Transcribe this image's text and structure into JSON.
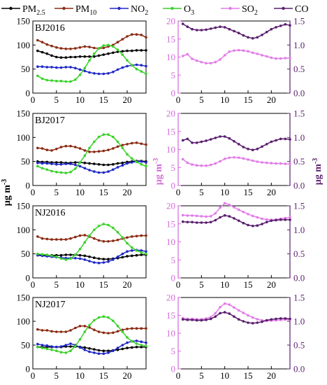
{
  "legend": {
    "items": [
      {
        "label": "PM2.5",
        "base": "PM",
        "sub": "2.5",
        "color": "#000000"
      },
      {
        "label": "PM10",
        "base": "PM",
        "sub": "10",
        "color": "#8b2a12"
      },
      {
        "label": "NO2",
        "base": "NO",
        "sub": "2",
        "color": "#1f27c7"
      },
      {
        "label": "O3",
        "base": "O",
        "sub": "3",
        "color": "#3ad12a"
      },
      {
        "label": "SO2",
        "base": "SO",
        "sub": "2",
        "color": "#e27de7"
      },
      {
        "label": "CO",
        "base": "CO",
        "sub": "",
        "color": "#5a1e6e"
      }
    ]
  },
  "axis_labels": {
    "left": "μg m-3",
    "middle": "μg m-3",
    "right": "μg m-3"
  },
  "colors": {
    "PM2.5": "#000000",
    "PM10": "#8b2a12",
    "NO2": "#1f27c7",
    "O3": "#3ad12a",
    "SO2": "#e27de7",
    "CO": "#5a1e6e",
    "so2_axis": "#d36ad9",
    "co_axis": "#5a1e6e"
  },
  "chart_data": [
    {
      "type": "line",
      "panel_label": "BJ2016",
      "x": [
        1,
        2,
        3,
        4,
        5,
        6,
        7,
        8,
        9,
        10,
        11,
        12,
        13,
        14,
        15,
        16,
        17,
        18,
        19,
        20,
        21,
        22,
        23,
        24
      ],
      "xlim": [
        0,
        24
      ],
      "xticks": [
        0,
        5,
        10,
        15,
        20
      ],
      "ylim": [
        0,
        150
      ],
      "yticks": [
        0,
        50,
        100,
        150
      ],
      "series": [
        {
          "name": "PM2.5",
          "values": [
            88,
            85,
            82,
            78,
            75,
            74,
            74,
            75,
            75,
            76,
            76,
            76,
            76,
            78,
            80,
            82,
            84,
            86,
            87,
            88,
            88,
            89,
            89,
            89
          ]
        },
        {
          "name": "PM10",
          "values": [
            110,
            106,
            101,
            98,
            95,
            93,
            92,
            92,
            93,
            95,
            97,
            96,
            94,
            93,
            94,
            97,
            100,
            106,
            112,
            118,
            122,
            122,
            121,
            116
          ]
        },
        {
          "name": "NO2",
          "values": [
            55,
            55,
            54,
            54,
            53,
            53,
            54,
            54,
            52,
            49,
            46,
            43,
            41,
            40,
            40,
            41,
            44,
            49,
            53,
            56,
            58,
            59,
            58,
            56
          ]
        },
        {
          "name": "O3",
          "values": [
            36,
            30,
            27,
            26,
            25,
            25,
            24,
            24,
            28,
            38,
            52,
            68,
            82,
            93,
            99,
            100,
            97,
            90,
            80,
            68,
            58,
            50,
            45,
            40
          ]
        }
      ]
    },
    {
      "type": "line",
      "panel_label": "",
      "x": [
        1,
        2,
        3,
        4,
        5,
        6,
        7,
        8,
        9,
        10,
        11,
        12,
        13,
        14,
        15,
        16,
        17,
        18,
        19,
        20,
        21,
        22,
        23,
        24
      ],
      "xlim": [
        0,
        24
      ],
      "xticks": [
        0,
        5,
        10,
        15,
        20
      ],
      "y_left": {
        "series": "SO2",
        "ylim": [
          0,
          20
        ],
        "yticks": [
          0,
          5,
          10,
          15,
          20
        ]
      },
      "y_right": {
        "series": "CO",
        "ylim": [
          0,
          1.5
        ],
        "yticks": [
          0.0,
          0.5,
          1.0,
          1.5
        ]
      },
      "series": [
        {
          "name": "SO2",
          "axis": "left",
          "values": [
            10.3,
            10.8,
            9.5,
            9.0,
            8.6,
            8.3,
            8.3,
            8.6,
            9.3,
            10.5,
            11.5,
            11.8,
            11.9,
            11.8,
            11.6,
            11.2,
            10.9,
            10.5,
            10.2,
            9.8,
            9.6,
            9.6,
            9.7,
            9.7
          ]
        },
        {
          "name": "CO",
          "axis": "right",
          "values": [
            1.44,
            1.38,
            1.33,
            1.31,
            1.31,
            1.32,
            1.34,
            1.36,
            1.38,
            1.37,
            1.33,
            1.29,
            1.25,
            1.2,
            1.16,
            1.14,
            1.16,
            1.21,
            1.27,
            1.33,
            1.37,
            1.4,
            1.43,
            1.41
          ]
        }
      ]
    },
    {
      "type": "line",
      "panel_label": "BJ2017",
      "x": [
        1,
        2,
        3,
        4,
        5,
        6,
        7,
        8,
        9,
        10,
        11,
        12,
        13,
        14,
        15,
        16,
        17,
        18,
        19,
        20,
        21,
        22,
        23,
        24
      ],
      "xlim": [
        0,
        24
      ],
      "xticks": [
        0,
        5,
        10,
        15,
        20
      ],
      "ylim": [
        0,
        150
      ],
      "yticks": [
        0,
        50,
        100,
        150
      ],
      "series": [
        {
          "name": "PM2.5",
          "values": [
            50,
            49,
            49,
            48,
            48,
            48,
            47,
            47,
            48,
            48,
            47,
            46,
            45,
            44,
            43,
            43,
            44,
            46,
            47,
            49,
            50,
            51,
            51,
            50
          ]
        },
        {
          "name": "PM10",
          "values": [
            78,
            77,
            74,
            73,
            76,
            80,
            82,
            82,
            80,
            77,
            73,
            70,
            70,
            71,
            72,
            74,
            77,
            81,
            84,
            86,
            88,
            89,
            87,
            85
          ]
        },
        {
          "name": "NO2",
          "values": [
            47,
            46,
            46,
            45,
            44,
            44,
            45,
            45,
            43,
            40,
            36,
            32,
            29,
            27,
            27,
            29,
            33,
            38,
            42,
            46,
            48,
            50,
            50,
            48
          ]
        },
        {
          "name": "O3",
          "values": [
            40,
            36,
            33,
            30,
            28,
            27,
            26,
            28,
            35,
            48,
            62,
            78,
            91,
            101,
            106,
            106,
            101,
            91,
            78,
            65,
            56,
            49,
            44,
            40
          ]
        }
      ]
    },
    {
      "type": "line",
      "panel_label": "",
      "x": [
        1,
        2,
        3,
        4,
        5,
        6,
        7,
        8,
        9,
        10,
        11,
        12,
        13,
        14,
        15,
        16,
        17,
        18,
        19,
        20,
        21,
        22,
        23,
        24
      ],
      "xlim": [
        0,
        24
      ],
      "xticks": [
        0,
        5,
        10,
        15,
        20
      ],
      "y_left": {
        "series": "SO2",
        "ylim": [
          0,
          20
        ],
        "yticks": [
          0,
          5,
          10,
          15,
          20
        ]
      },
      "y_right": {
        "series": "CO",
        "ylim": [
          0,
          1.5
        ],
        "yticks": [
          0.0,
          0.5,
          1.0,
          1.5
        ]
      },
      "series": [
        {
          "name": "SO2",
          "axis": "left",
          "values": [
            7.3,
            6.3,
            5.8,
            5.6,
            5.5,
            5.5,
            5.7,
            6.1,
            6.7,
            7.4,
            7.7,
            7.8,
            7.7,
            7.5,
            7.2,
            6.9,
            6.6,
            6.4,
            6.3,
            6.2,
            6.1,
            6.1,
            6.0,
            6.0
          ]
        },
        {
          "name": "CO",
          "axis": "right",
          "values": [
            0.94,
            0.97,
            0.89,
            0.89,
            0.91,
            0.93,
            0.96,
            0.99,
            1.02,
            1.02,
            0.98,
            0.92,
            0.86,
            0.8,
            0.76,
            0.74,
            0.76,
            0.81,
            0.86,
            0.91,
            0.94,
            0.97,
            0.97,
            0.96
          ]
        }
      ]
    },
    {
      "type": "line",
      "panel_label": "NJ2016",
      "x": [
        1,
        2,
        3,
        4,
        5,
        6,
        7,
        8,
        9,
        10,
        11,
        12,
        13,
        14,
        15,
        16,
        17,
        18,
        19,
        20,
        21,
        22,
        23,
        24
      ],
      "xlim": [
        0,
        24
      ],
      "xticks": [
        0,
        5,
        10,
        15,
        20
      ],
      "ylim": [
        0,
        150
      ],
      "yticks": [
        0,
        50,
        100,
        150
      ],
      "series": [
        {
          "name": "PM2.5",
          "values": [
            48,
            47,
            47,
            47,
            47,
            47,
            48,
            48,
            48,
            47,
            46,
            44,
            42,
            40,
            39,
            39,
            40,
            41,
            43,
            45,
            46,
            47,
            48,
            48
          ]
        },
        {
          "name": "PM10",
          "values": [
            86,
            82,
            81,
            80,
            80,
            80,
            80,
            82,
            85,
            88,
            89,
            86,
            82,
            78,
            76,
            76,
            77,
            79,
            82,
            84,
            86,
            87,
            88,
            88
          ]
        },
        {
          "name": "NO2",
          "values": [
            47,
            46,
            45,
            44,
            43,
            42,
            41,
            41,
            41,
            40,
            38,
            35,
            32,
            31,
            32,
            34,
            38,
            44,
            50,
            55,
            57,
            58,
            57,
            55
          ]
        },
        {
          "name": "O3",
          "values": [
            50,
            49,
            48,
            46,
            44,
            40,
            38,
            40,
            48,
            60,
            74,
            88,
            100,
            108,
            112,
            110,
            104,
            95,
            84,
            72,
            63,
            57,
            53,
            50
          ]
        }
      ]
    },
    {
      "type": "line",
      "panel_label": "",
      "x": [
        1,
        2,
        3,
        4,
        5,
        6,
        7,
        8,
        9,
        10,
        11,
        12,
        13,
        14,
        15,
        16,
        17,
        18,
        19,
        20,
        21,
        22,
        23,
        24
      ],
      "xlim": [
        0,
        24
      ],
      "xticks": [
        0,
        5,
        10,
        15,
        20
      ],
      "y_left": {
        "series": "SO2",
        "ylim": [
          0,
          20
        ],
        "yticks": [
          0,
          5,
          10,
          15,
          20
        ]
      },
      "y_right": {
        "series": "CO",
        "ylim": [
          0,
          1.5
        ],
        "yticks": [
          0.0,
          0.5,
          1.0,
          1.5
        ]
      },
      "series": [
        {
          "name": "SO2",
          "axis": "left",
          "values": [
            17.4,
            17.3,
            17.3,
            17.2,
            17.1,
            17.0,
            17.1,
            17.9,
            19.5,
            20.7,
            20.3,
            19.6,
            18.9,
            18.3,
            17.7,
            17.2,
            16.8,
            16.4,
            16.2,
            16.1,
            16.2,
            16.4,
            16.6,
            16.8
          ]
        },
        {
          "name": "CO",
          "axis": "right",
          "values": [
            1.17,
            1.16,
            1.16,
            1.15,
            1.15,
            1.15,
            1.16,
            1.2,
            1.26,
            1.3,
            1.28,
            1.24,
            1.19,
            1.14,
            1.1,
            1.08,
            1.09,
            1.12,
            1.16,
            1.19,
            1.2,
            1.21,
            1.21,
            1.21
          ]
        }
      ]
    },
    {
      "type": "line",
      "panel_label": "NJ2017",
      "x": [
        1,
        2,
        3,
        4,
        5,
        6,
        7,
        8,
        9,
        10,
        11,
        12,
        13,
        14,
        15,
        16,
        17,
        18,
        19,
        20,
        21,
        22,
        23,
        24
      ],
      "xlim": [
        0,
        24
      ],
      "xticks": [
        0,
        5,
        10,
        15,
        20
      ],
      "ylim": [
        0,
        150
      ],
      "yticks": [
        0,
        50,
        100,
        150
      ],
      "series": [
        {
          "name": "PM2.5",
          "values": [
            46,
            46,
            46,
            46,
            46,
            46,
            47,
            47,
            47,
            46,
            45,
            43,
            41,
            39,
            38,
            38,
            39,
            40,
            42,
            44,
            45,
            46,
            46,
            46
          ]
        },
        {
          "name": "PM10",
          "values": [
            83,
            81,
            81,
            79,
            78,
            78,
            78,
            81,
            86,
            90,
            90,
            87,
            82,
            78,
            76,
            75,
            76,
            79,
            82,
            84,
            85,
            85,
            85,
            85
          ]
        },
        {
          "name": "NO2",
          "values": [
            52,
            50,
            49,
            47,
            46,
            47,
            50,
            53,
            50,
            45,
            40,
            36,
            34,
            32,
            32,
            34,
            38,
            44,
            50,
            55,
            58,
            59,
            57,
            55
          ]
        },
        {
          "name": "O3",
          "values": [
            46,
            44,
            42,
            40,
            38,
            35,
            34,
            38,
            48,
            62,
            78,
            92,
            102,
            108,
            110,
            108,
            101,
            90,
            78,
            66,
            58,
            53,
            50,
            48
          ]
        }
      ]
    },
    {
      "type": "line",
      "panel_label": "",
      "x": [
        1,
        2,
        3,
        4,
        5,
        6,
        7,
        8,
        9,
        10,
        11,
        12,
        13,
        14,
        15,
        16,
        17,
        18,
        19,
        20,
        21,
        22,
        23,
        24
      ],
      "xlim": [
        0,
        24
      ],
      "xticks": [
        0,
        5,
        10,
        15,
        20
      ],
      "y_left": {
        "series": "SO2",
        "ylim": [
          0,
          20
        ],
        "yticks": [
          0,
          5,
          10,
          15,
          20
        ]
      },
      "y_right": {
        "series": "CO",
        "ylim": [
          0,
          1.5
        ],
        "yticks": [
          0.0,
          0.5,
          1.0,
          1.5
        ]
      },
      "series": [
        {
          "name": "SO2",
          "axis": "left",
          "values": [
            14.2,
            14.0,
            14.0,
            13.9,
            13.9,
            14.1,
            14.5,
            15.6,
            17.3,
            18.3,
            18.0,
            17.2,
            16.4,
            15.7,
            15.0,
            14.4,
            13.9,
            13.6,
            13.5,
            13.5,
            13.6,
            13.7,
            13.8,
            13.8
          ]
        },
        {
          "name": "CO",
          "axis": "right",
          "values": [
            1.04,
            1.03,
            1.03,
            1.02,
            1.02,
            1.03,
            1.05,
            1.1,
            1.17,
            1.19,
            1.16,
            1.1,
            1.04,
            1.0,
            0.97,
            0.96,
            0.97,
            0.99,
            1.02,
            1.04,
            1.05,
            1.06,
            1.06,
            1.05
          ]
        }
      ]
    }
  ]
}
